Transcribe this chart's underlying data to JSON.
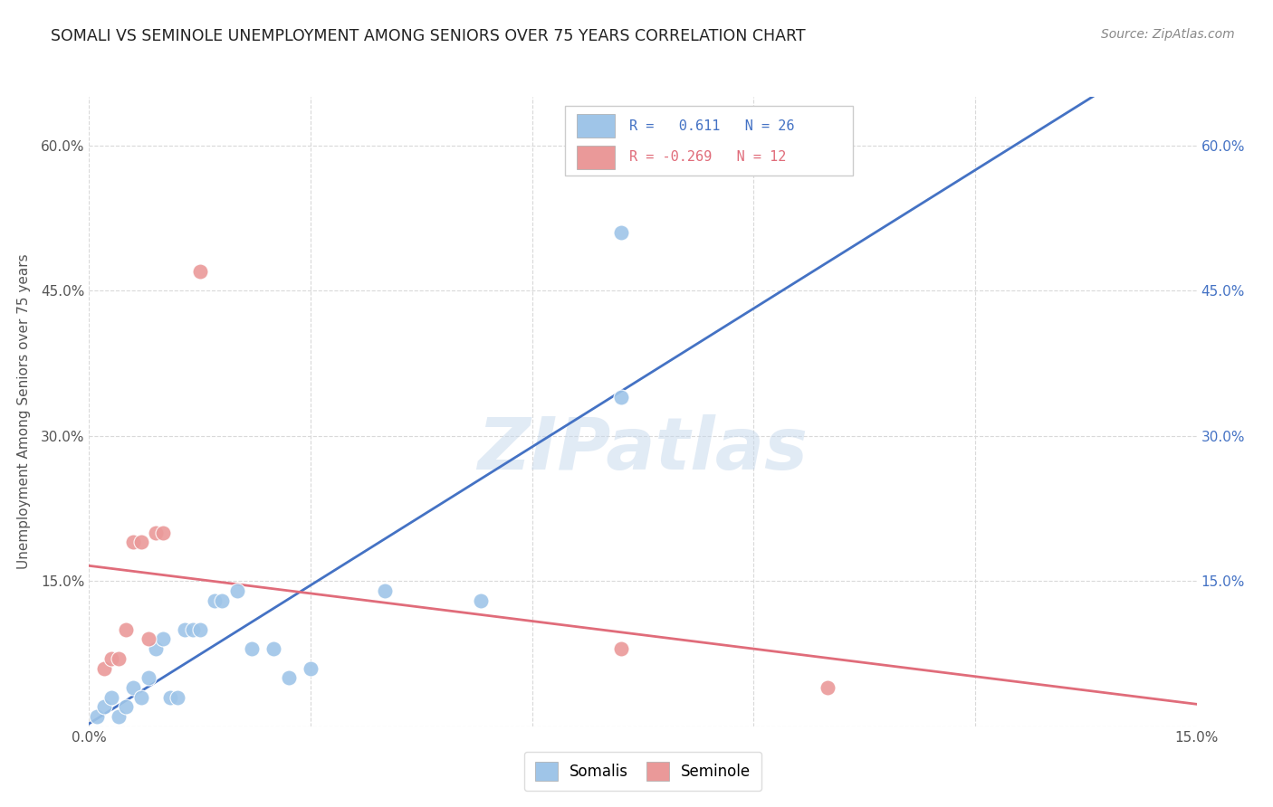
{
  "title": "SOMALI VS SEMINOLE UNEMPLOYMENT AMONG SENIORS OVER 75 YEARS CORRELATION CHART",
  "source": "Source: ZipAtlas.com",
  "ylabel": "Unemployment Among Seniors over 75 years",
  "xlim": [
    0.0,
    0.15
  ],
  "ylim": [
    0.0,
    0.65
  ],
  "xticks": [
    0.0,
    0.15
  ],
  "yticks": [
    0.0,
    0.15,
    0.3,
    0.45,
    0.6
  ],
  "xtick_labels": [
    "0.0%",
    "15.0%"
  ],
  "ytick_labels_left": [
    "",
    "15.0%",
    "30.0%",
    "45.0%",
    "60.0%"
  ],
  "ytick_labels_right": [
    "",
    "15.0%",
    "30.0%",
    "45.0%",
    "60.0%"
  ],
  "somali_color": "#9fc5e8",
  "seminole_color": "#ea9999",
  "somali_line_color": "#4472c4",
  "seminole_line_color": "#e06c7a",
  "somali_R": 0.611,
  "somali_N": 26,
  "seminole_R": -0.269,
  "seminole_N": 12,
  "somali_points": [
    [
      0.001,
      0.01
    ],
    [
      0.002,
      0.02
    ],
    [
      0.003,
      0.03
    ],
    [
      0.004,
      0.01
    ],
    [
      0.005,
      0.02
    ],
    [
      0.006,
      0.04
    ],
    [
      0.007,
      0.03
    ],
    [
      0.008,
      0.05
    ],
    [
      0.009,
      0.08
    ],
    [
      0.01,
      0.09
    ],
    [
      0.011,
      0.03
    ],
    [
      0.012,
      0.03
    ],
    [
      0.013,
      0.1
    ],
    [
      0.014,
      0.1
    ],
    [
      0.015,
      0.1
    ],
    [
      0.017,
      0.13
    ],
    [
      0.018,
      0.13
    ],
    [
      0.02,
      0.14
    ],
    [
      0.022,
      0.08
    ],
    [
      0.025,
      0.08
    ],
    [
      0.027,
      0.05
    ],
    [
      0.03,
      0.06
    ],
    [
      0.04,
      0.14
    ],
    [
      0.053,
      0.13
    ],
    [
      0.072,
      0.34
    ],
    [
      0.072,
      0.51
    ]
  ],
  "seminole_points": [
    [
      0.002,
      0.06
    ],
    [
      0.003,
      0.07
    ],
    [
      0.004,
      0.07
    ],
    [
      0.005,
      0.1
    ],
    [
      0.006,
      0.19
    ],
    [
      0.007,
      0.19
    ],
    [
      0.008,
      0.09
    ],
    [
      0.009,
      0.2
    ],
    [
      0.01,
      0.2
    ],
    [
      0.015,
      0.47
    ],
    [
      0.072,
      0.08
    ],
    [
      0.1,
      0.04
    ]
  ],
  "watermark_text": "ZIPatlas",
  "background_color": "#ffffff",
  "grid_color": "#d9d9d9",
  "title_color": "#222222",
  "source_color": "#888888",
  "ylabel_color": "#555555",
  "tick_color": "#555555"
}
